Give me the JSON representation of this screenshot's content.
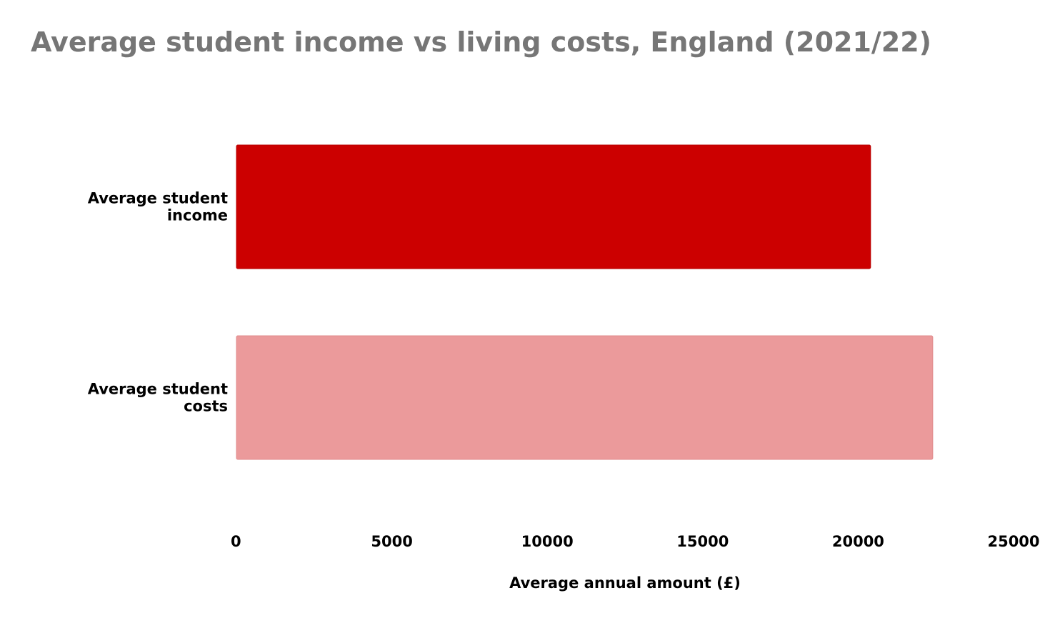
{
  "chart_data": {
    "type": "bar",
    "orientation": "horizontal",
    "title": "Average student income vs living costs, England (2021/22)",
    "xlabel": "Average annual amount (£)",
    "ylabel": "",
    "categories": [
      [
        "Average student",
        "income"
      ],
      [
        "Average student",
        "costs"
      ]
    ],
    "values": [
      20400,
      22400
    ],
    "xlim": [
      0,
      25000
    ],
    "xticks": [
      "0",
      "5000",
      "10000",
      "15000",
      "20000",
      "25000"
    ],
    "grid": false,
    "legend": "none"
  },
  "colors": {
    "title": "#767676",
    "bars": [
      "#cc0000",
      "#eb9a9b"
    ],
    "bar_strokes": [
      "#b80000",
      "#e08c8d"
    ]
  }
}
